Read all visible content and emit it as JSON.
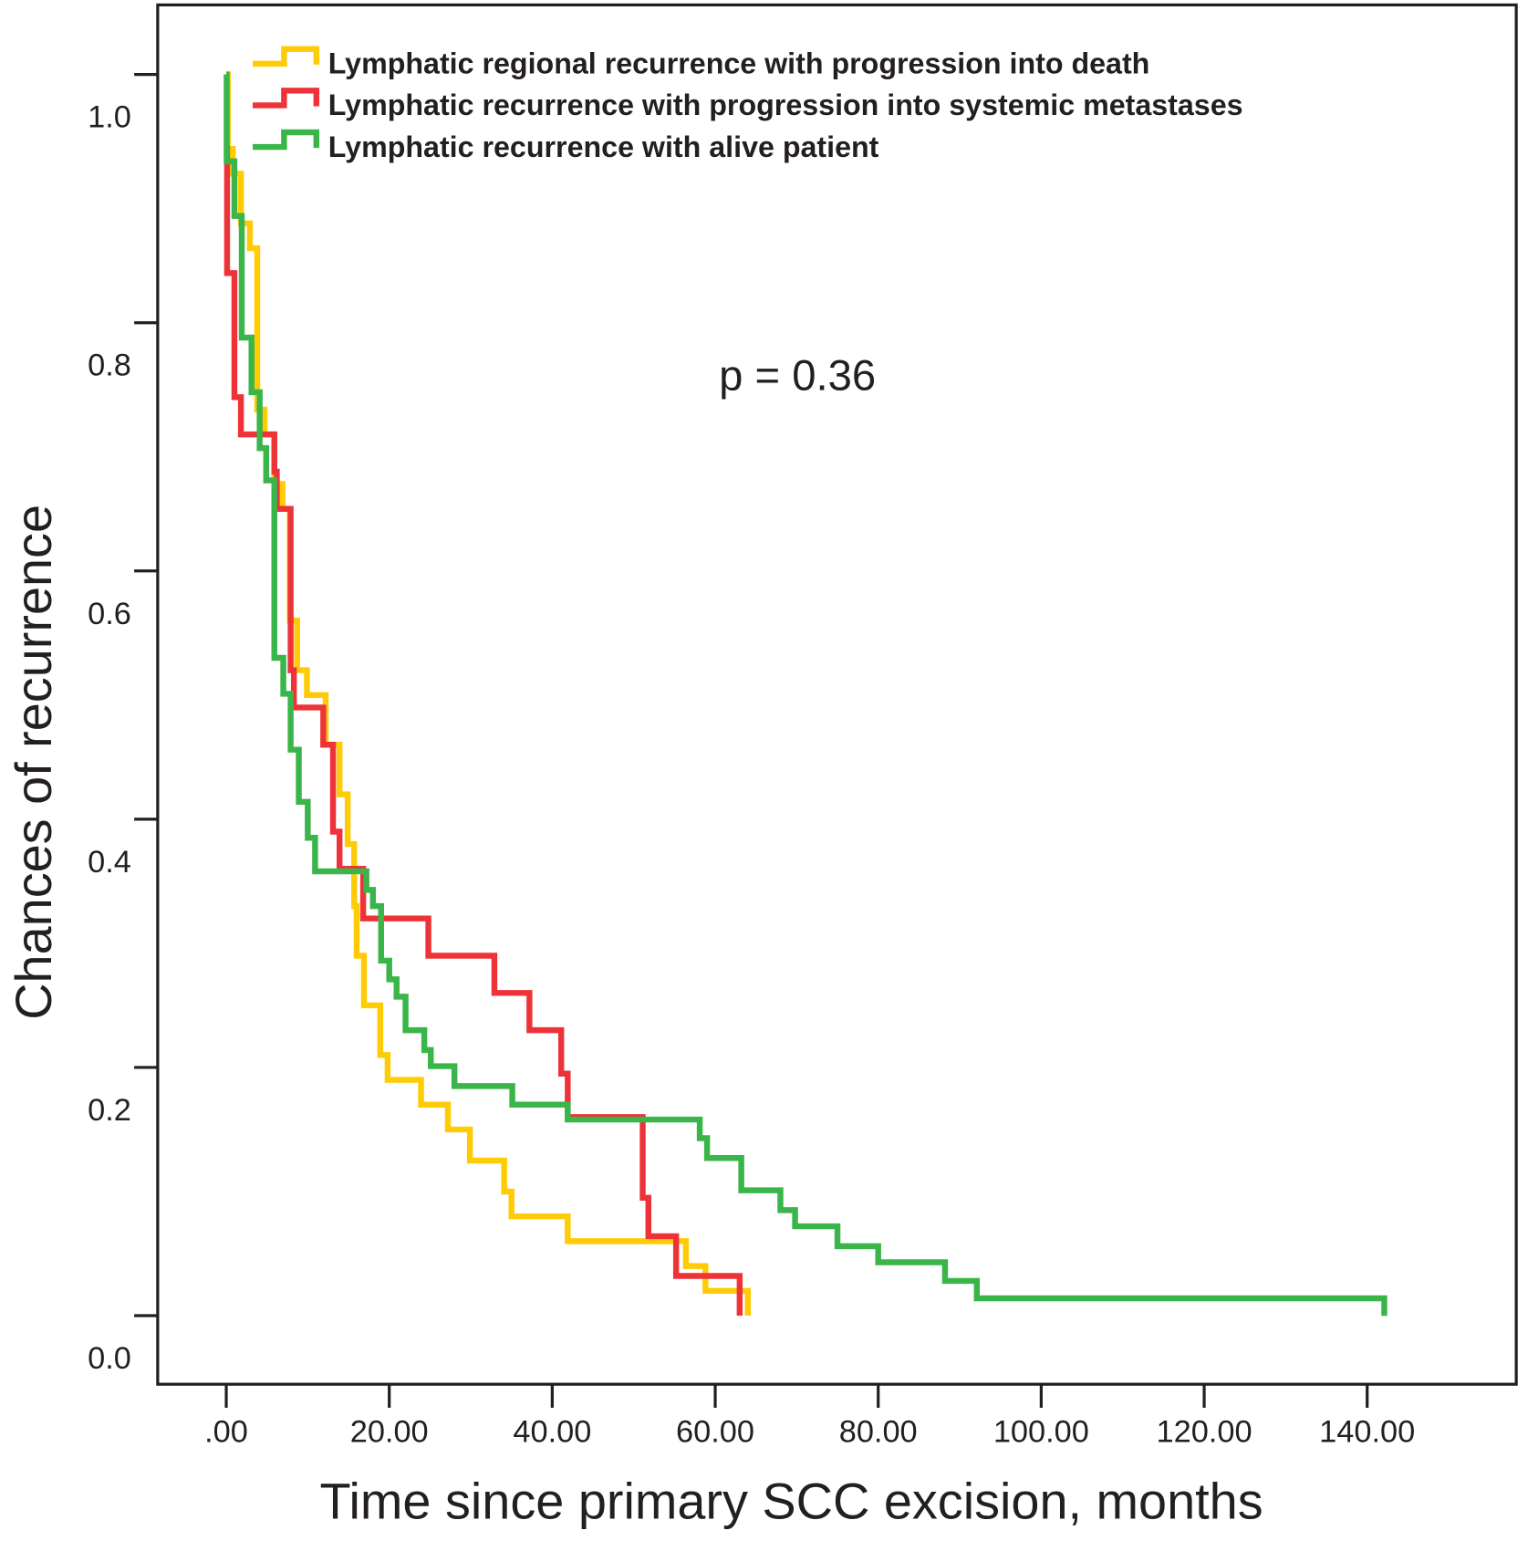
{
  "chart_data": {
    "type": "line",
    "subtype": "kaplan-meier step",
    "title": "",
    "xlabel": "Time since primary SCC excision, months",
    "ylabel": "Chances of recurrence",
    "xlim": [
      -8.4,
      158.5
    ],
    "ylim": [
      -0.055,
      1.055
    ],
    "x_ticks": [
      0,
      20,
      40,
      60,
      80,
      100,
      120,
      140
    ],
    "x_tick_labels": [
      ".00",
      "20.00",
      "40.00",
      "60.00",
      "80.00",
      "100.00",
      "120.00",
      "140.00"
    ],
    "y_ticks": [
      0,
      0.2,
      0.4,
      0.6,
      0.8,
      1.0
    ],
    "y_tick_labels": [
      "0.0",
      "0.2",
      "0.4",
      "0.6",
      "0.8",
      "1.0"
    ],
    "grid": false,
    "legend_position": "top-left",
    "annotation": "p = 0.36",
    "series": [
      {
        "name": "Lymphatic regional recurrence with progression into death",
        "color": "#ffcb05",
        "start": [
          0,
          1.0
        ],
        "steps": [
          [
            0.2,
            0.94
          ],
          [
            0.8,
            0.92
          ],
          [
            1.8,
            0.88
          ],
          [
            2.9,
            0.86
          ],
          [
            3.8,
            0.73
          ],
          [
            4.7,
            0.71
          ],
          [
            5.9,
            0.67
          ],
          [
            6.9,
            0.65
          ],
          [
            7.8,
            0.56
          ],
          [
            8.7,
            0.52
          ],
          [
            9.9,
            0.5
          ],
          [
            12.2,
            0.46
          ],
          [
            13.9,
            0.42
          ],
          [
            14.9,
            0.38
          ],
          [
            15.7,
            0.33
          ],
          [
            16.0,
            0.29
          ],
          [
            16.9,
            0.25
          ],
          [
            18.9,
            0.21
          ],
          [
            19.8,
            0.19
          ],
          [
            23.9,
            0.17
          ],
          [
            27.2,
            0.15
          ],
          [
            29.9,
            0.125
          ],
          [
            34.1,
            0.1
          ],
          [
            35.0,
            0.08
          ],
          [
            41.9,
            0.06
          ],
          [
            56.4,
            0.04
          ],
          [
            58.8,
            0.02
          ],
          [
            64.0,
            0.0
          ]
        ],
        "end_time": 64.0
      },
      {
        "name": "Lymphatic recurrence with progression into systemic metastases",
        "color": "#ee3338",
        "start": [
          0,
          0.94
        ],
        "steps": [
          [
            0.1,
            0.84
          ],
          [
            1.0,
            0.74
          ],
          [
            1.8,
            0.71
          ],
          [
            5.9,
            0.68
          ],
          [
            6.2,
            0.65
          ],
          [
            7.9,
            0.52
          ],
          [
            8.3,
            0.49
          ],
          [
            11.9,
            0.46
          ],
          [
            13.1,
            0.39
          ],
          [
            13.9,
            0.36
          ],
          [
            16.8,
            0.32
          ],
          [
            24.8,
            0.29
          ],
          [
            32.9,
            0.26
          ],
          [
            37.2,
            0.23
          ],
          [
            41.1,
            0.195
          ],
          [
            41.9,
            0.16
          ],
          [
            51.1,
            0.095
          ],
          [
            51.8,
            0.064
          ],
          [
            55.2,
            0.032
          ],
          [
            63.0,
            0.0
          ]
        ],
        "end_time": 63.0
      },
      {
        "name": "Lymphatic recurrence with alive patient",
        "color": "#39b54a",
        "start": [
          0,
          1.0
        ],
        "steps": [
          [
            0.05,
            0.93
          ],
          [
            1.0,
            0.886
          ],
          [
            1.9,
            0.788
          ],
          [
            3.1,
            0.744
          ],
          [
            4.1,
            0.699
          ],
          [
            4.9,
            0.673
          ],
          [
            5.9,
            0.53
          ],
          [
            7.0,
            0.501
          ],
          [
            7.9,
            0.456
          ],
          [
            8.9,
            0.414
          ],
          [
            10.0,
            0.385
          ],
          [
            10.9,
            0.358
          ],
          [
            17.2,
            0.343
          ],
          [
            18.0,
            0.33
          ],
          [
            19.0,
            0.286
          ],
          [
            20.0,
            0.271
          ],
          [
            20.9,
            0.257
          ],
          [
            22.0,
            0.23
          ],
          [
            24.3,
            0.214
          ],
          [
            25.1,
            0.201
          ],
          [
            28.0,
            0.185
          ],
          [
            35.1,
            0.17
          ],
          [
            41.9,
            0.158
          ],
          [
            58.1,
            0.143
          ],
          [
            59.0,
            0.127
          ],
          [
            63.2,
            0.101
          ],
          [
            68.0,
            0.085
          ],
          [
            69.8,
            0.072
          ],
          [
            75.0,
            0.056
          ],
          [
            80.0,
            0.043
          ],
          [
            88.2,
            0.028
          ],
          [
            92.1,
            0.014
          ]
        ],
        "end_time": 142.1
      }
    ]
  }
}
